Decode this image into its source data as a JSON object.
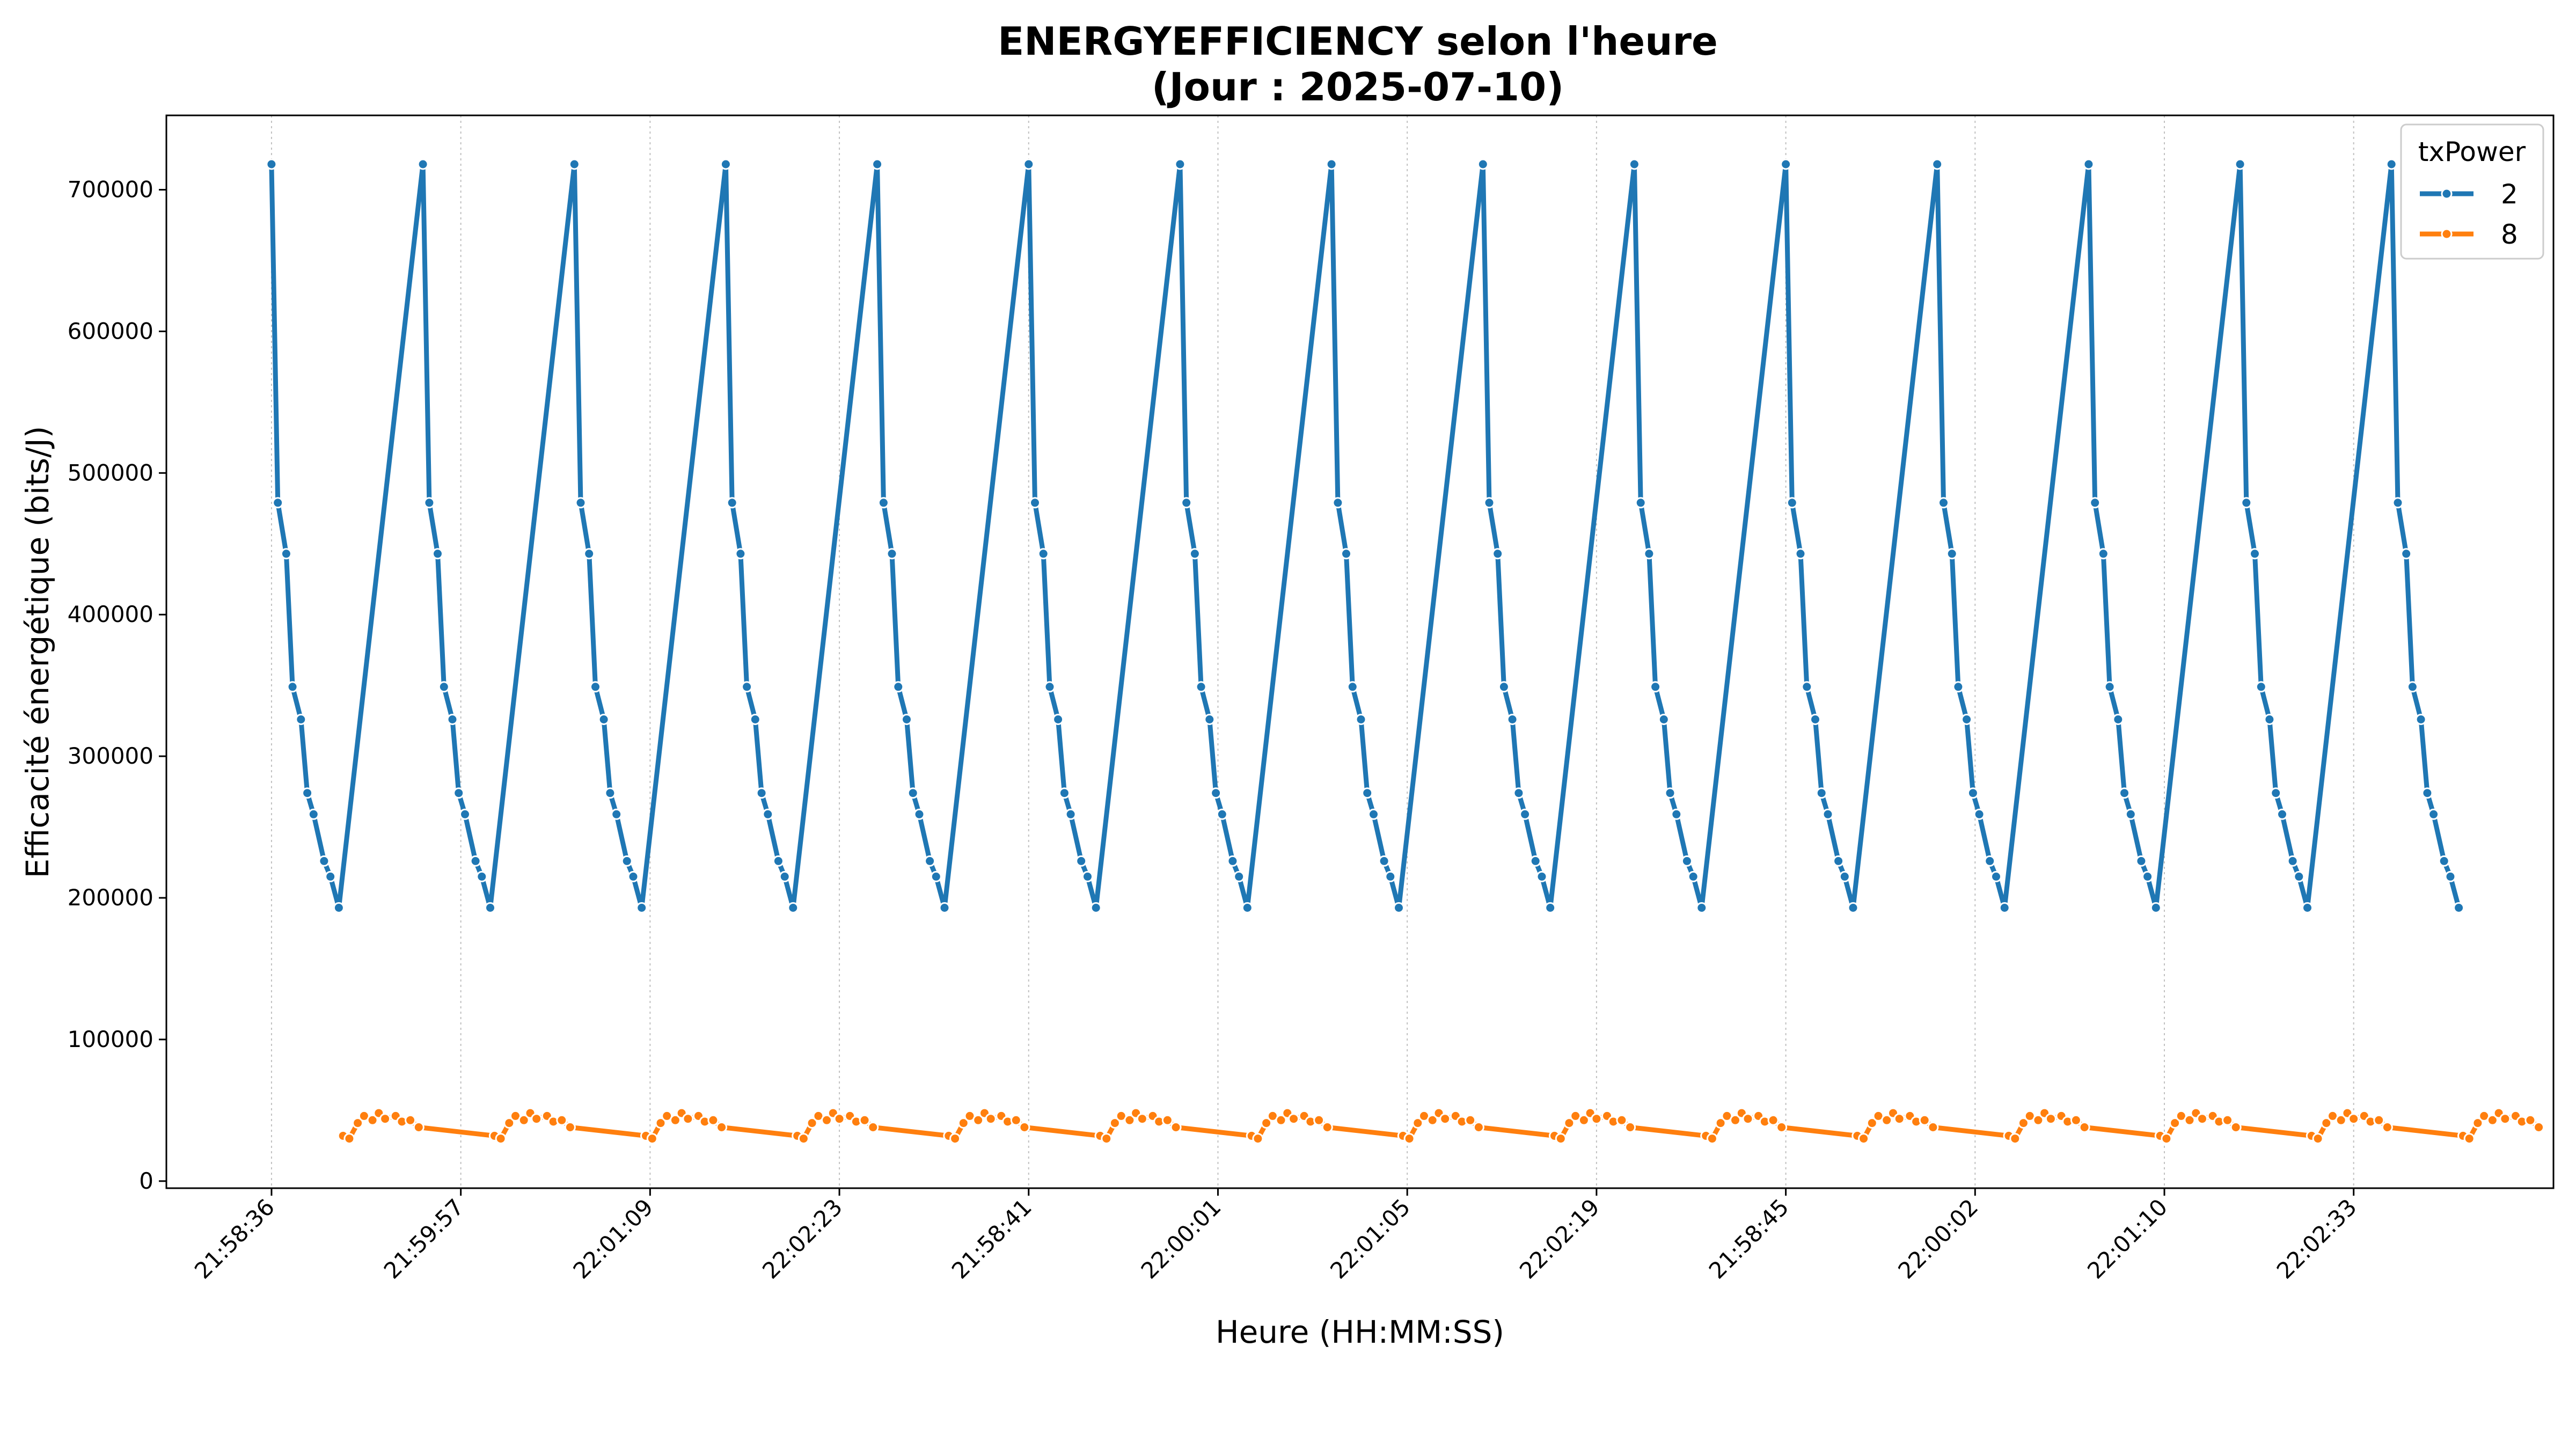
{
  "chart_data": {
    "type": "line",
    "title_line1": "ENERGYEFFICIENCY selon l'heure",
    "title_line2": "(Jour : 2025-07-10)",
    "xlabel": "Heure (HH:MM:SS)",
    "ylabel": "Efficacité énergétique (bits/J)",
    "ylim": [
      -5000,
      752500
    ],
    "xlim": [
      -5,
      108.5
    ],
    "yticks": [
      0,
      100000,
      200000,
      300000,
      400000,
      500000,
      600000,
      700000
    ],
    "xticks": [
      {
        "x": 0,
        "label": "21:58:36"
      },
      {
        "x": 9,
        "label": "21:59:57"
      },
      {
        "x": 18,
        "label": "22:01:09"
      },
      {
        "x": 27,
        "label": "22:02:23"
      },
      {
        "x": 36,
        "label": "21:58:41"
      },
      {
        "x": 45,
        "label": "22:00:01"
      },
      {
        "x": 54,
        "label": "22:01:05"
      },
      {
        "x": 63,
        "label": "22:02:19"
      },
      {
        "x": 72,
        "label": "21:58:45"
      },
      {
        "x": 81,
        "label": "22:00:02"
      },
      {
        "x": 90,
        "label": "22:01:10"
      },
      {
        "x": 99,
        "label": "22:02:33"
      }
    ],
    "grid_x": true,
    "legend": {
      "title": "txPower",
      "placement": "top-right"
    },
    "series": [
      {
        "name": "2",
        "color": "#1f77b4",
        "cycle_start": 0,
        "cycle_period": 7.2,
        "cycle_offsets": [
          0,
          0.3,
          0.7,
          1.0,
          1.4,
          1.7,
          2.0,
          2.5,
          2.8,
          3.2
        ],
        "cycle_values": [
          718000,
          479000,
          443000,
          349000,
          326000,
          274000,
          259000,
          226000,
          215000,
          193000
        ],
        "cycles": 15
      },
      {
        "name": "8",
        "color": "#ff7f0e",
        "cycle_start": 3.4,
        "cycle_period": 7.2,
        "cycle_offsets": [
          0,
          0.3,
          0.7,
          1.0,
          1.4,
          1.7,
          2.0,
          2.5,
          2.8,
          3.2,
          3.6
        ],
        "cycle_values": [
          32000,
          30000,
          41000,
          46000,
          43000,
          48000,
          44000,
          46000,
          42000,
          43000,
          38000
        ],
        "cycles": 15
      }
    ]
  }
}
